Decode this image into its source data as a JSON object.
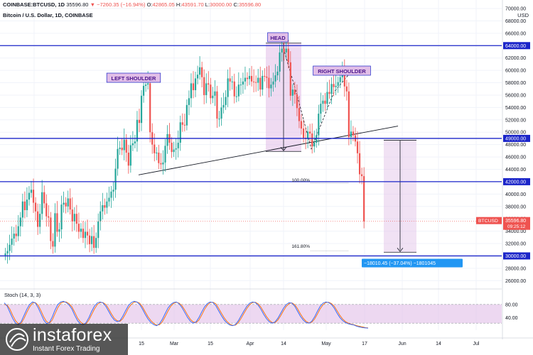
{
  "header": {
    "symbol": "COINBASE:BTCUSD, 1D",
    "last": "35596.80",
    "change": "▼ −7260.35 (−16.94%)",
    "ohlc": [
      {
        "label": "O:",
        "value": "42865.05"
      },
      {
        "label": "H:",
        "value": "43591.70"
      },
      {
        "label": "L:",
        "value": "30000.00"
      },
      {
        "label": "C:",
        "value": "35596.80"
      }
    ],
    "title": "Bitcoin / U.S. Dollar, 1D, COINBASE",
    "currency": "USD"
  },
  "colors": {
    "up": "#26a69a",
    "down": "#ef5350",
    "level_line": "#1b25c9",
    "pattern_fill": "#e1bee7",
    "stoch_fill": "#e1bee7",
    "stoch_k": "#2962ff",
    "stoch_d": "#ff6d00",
    "price_tag": "#ef5350",
    "measure_tag": "#2196f3"
  },
  "chart_data": {
    "type": "candlestick",
    "pair": "BTCUSD",
    "timeframe": "1D",
    "xaxis_labels": [
      "15",
      "Mar",
      "15",
      "Apr",
      "14",
      "May",
      "17",
      "Jun",
      "14",
      "Jul"
    ],
    "yaxis_labels": [
      "26000.00",
      "28000.00",
      "30000.00",
      "32000.00",
      "34000.00",
      "36000.00",
      "38000.00",
      "40000.00",
      "42000.00",
      "44000.00",
      "46000.00",
      "48000.00",
      "49000.00",
      "50000.00",
      "52000.00",
      "54000.00",
      "56000.00",
      "58000.00",
      "60000.00",
      "62000.00",
      "64000.00",
      "66000.00",
      "68000.00",
      "70000.00"
    ],
    "ylim": [
      25000,
      70000
    ],
    "levels": [
      64000,
      49000,
      42000,
      30000
    ],
    "level_labels": [
      "64000.00",
      "49000.00",
      "42000.00",
      "30000.00"
    ],
    "current_price": {
      "symbol": "BTCUSD",
      "price": "35596.80",
      "countdown": "09:25:12"
    },
    "annotations": [
      {
        "text": "LEFT SHOULDER"
      },
      {
        "text": "HEAD"
      },
      {
        "text": "RIGHT SHOULDER"
      }
    ],
    "fib_labels": [
      {
        "text": "100.00%",
        "price": 42000
      },
      {
        "text": "161.80%",
        "price": 30000
      }
    ],
    "measurement": "−18010.45 (−37.04%) −1801045",
    "pattern_box": {
      "price_top": 64400,
      "price_bottom": 46900
    },
    "neckline": {
      "from_price": 43100,
      "to_price": 51000
    },
    "target_box": {
      "price_top": 48700,
      "price_bottom": 30600
    },
    "closes": [
      30400,
      30800,
      31800,
      32800,
      33600,
      33200,
      34800,
      36200,
      38800,
      37400,
      39100,
      40200,
      40700,
      38600,
      37200,
      34700,
      36800,
      40300,
      38500,
      36400,
      36200,
      32400,
      31500,
      36900,
      33900,
      34300,
      38300,
      38600,
      38000,
      39300,
      37500,
      35600,
      36800,
      35200,
      33900,
      34400,
      32900,
      33900,
      33300,
      31900,
      33200,
      31300,
      32900,
      35600,
      37200,
      38200,
      37800,
      38800,
      39400,
      40400,
      40700,
      44100,
      47300,
      47500,
      47100,
      48800,
      46700,
      44600,
      47900,
      48200,
      48500,
      52000,
      51500,
      55900,
      57500,
      57700,
      57900,
      50000,
      48000,
      46600,
      46700,
      45000,
      44800,
      45100,
      47800,
      49700,
      48300,
      46800,
      47200,
      47400,
      48300,
      51600,
      51200,
      51100,
      54400,
      55500,
      57900,
      56800,
      58700,
      59300,
      60500,
      58900,
      56000,
      57900,
      57700,
      55500,
      55900,
      56600,
      52200,
      52200,
      54000,
      54400,
      55700,
      58700,
      58200,
      58200,
      55800,
      55800,
      57700,
      57700,
      58200,
      58800,
      58600,
      59100,
      58200,
      58100,
      58000,
      58800,
      56900,
      59100,
      59000,
      58800,
      57100,
      57700,
      58200,
      59200,
      59800,
      62900,
      63500,
      62900,
      63500,
      61300,
      55900,
      56900,
      56100,
      53900,
      51800,
      50600,
      49100,
      48900,
      50100,
      49800,
      47700,
      48300,
      49500,
      53000,
      54600,
      55100,
      54600,
      56500,
      56200,
      57800,
      57300,
      57500,
      58100,
      58900,
      59800,
      57400,
      56600,
      49200,
      50100,
      49500,
      48500,
      46600,
      43200,
      42900,
      35600
    ],
    "stoch": {
      "levels": [
        "80.00",
        "40.00"
      ],
      "label": "Stoch (14, 3, 3)",
      "k": [
        85,
        75,
        55,
        35,
        20,
        15,
        25,
        45,
        65,
        80,
        88,
        85,
        70,
        50,
        30,
        18,
        22,
        40,
        62,
        80,
        88,
        90,
        86,
        78,
        65,
        45,
        28,
        18,
        15,
        22,
        38,
        58,
        75,
        85,
        88,
        85,
        74,
        58,
        42,
        30,
        25,
        28,
        42,
        60,
        76,
        86,
        90,
        88,
        80,
        65,
        48,
        33,
        22,
        15,
        12,
        18,
        32,
        50,
        68,
        80,
        86,
        88,
        82,
        70,
        54,
        38,
        26,
        20,
        24,
        38,
        56,
        72,
        83,
        88,
        86,
        76,
        60,
        44,
        30,
        20,
        14,
        12,
        16,
        28,
        44,
        60,
        74,
        84,
        88,
        86,
        78,
        64,
        48,
        34,
        24,
        20,
        24,
        36,
        52,
        68,
        80,
        86,
        84,
        74,
        58,
        42,
        30,
        22,
        20,
        26,
        40,
        58,
        74,
        84,
        88,
        86,
        80,
        68,
        52,
        38,
        28,
        22,
        18,
        16,
        14,
        10,
        8,
        6,
        5,
        4
      ],
      "d": [
        80,
        78,
        65,
        45,
        28,
        18,
        20,
        35,
        55,
        72,
        84,
        86,
        78,
        60,
        40,
        25,
        20,
        30,
        50,
        70,
        84,
        88,
        88,
        82,
        72,
        55,
        36,
        24,
        17,
        18,
        30,
        48,
        66,
        80,
        86,
        86,
        80,
        66,
        50,
        36,
        28,
        26,
        34,
        50,
        68,
        80,
        87,
        88,
        84,
        72,
        56,
        40,
        28,
        19,
        14,
        15,
        24,
        40,
        58,
        74,
        83,
        87,
        84,
        76,
        62,
        46,
        32,
        24,
        22,
        30,
        46,
        64,
        78,
        86,
        87,
        82,
        68,
        52,
        37,
        25,
        17,
        13,
        14,
        22,
        36,
        52,
        67,
        79,
        86,
        87,
        82,
        71,
        56,
        41,
        29,
        22,
        22,
        30,
        44,
        60,
        74,
        83,
        85,
        79,
        66,
        50,
        36,
        26,
        21,
        23,
        33,
        49,
        66,
        79,
        86,
        87,
        83,
        74,
        60,
        45,
        33,
        25,
        20,
        17,
        15,
        12,
        10,
        8,
        6,
        5
      ]
    }
  },
  "watermark": {
    "name": "instaforex",
    "tagline": "Instant Forex Trading"
  }
}
